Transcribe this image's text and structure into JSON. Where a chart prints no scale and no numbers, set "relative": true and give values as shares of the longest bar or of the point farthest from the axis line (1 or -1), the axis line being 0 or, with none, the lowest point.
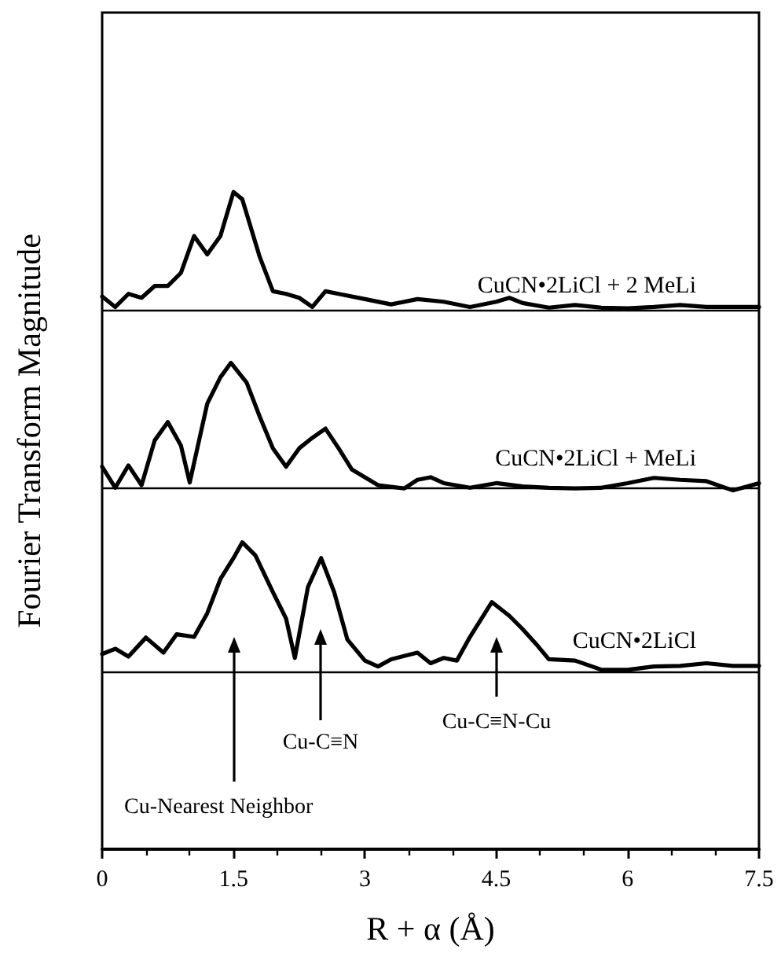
{
  "chart_data": {
    "type": "line",
    "relative": true,
    "xlabel": "R + α (Å)",
    "ylabel": "Fourier Transform Magnitude",
    "xlim": [
      0,
      7.5
    ],
    "xticks": [
      0,
      1.5,
      3,
      4.5,
      6,
      7.5
    ],
    "tick_labels": "x",
    "grid": false,
    "legend": false,
    "marker": "none",
    "line_style": "solid",
    "series": [
      {
        "name": "CuCN•2LiCl + 2 MeLi",
        "color": "#000000",
        "x": [
          0,
          0.15,
          0.3,
          0.45,
          0.6,
          0.75,
          0.9,
          1.05,
          1.2,
          1.35,
          1.5,
          1.6,
          1.8,
          1.95,
          2.1,
          2.25,
          2.4,
          2.55,
          2.7,
          3.0,
          3.3,
          3.6,
          3.9,
          4.2,
          4.5,
          4.65,
          4.8,
          5.1,
          5.4,
          5.7,
          6.0,
          6.3,
          6.6,
          6.9,
          7.2,
          7.5
        ],
        "values": [
          0.841,
          0.825,
          0.845,
          0.839,
          0.857,
          0.857,
          0.877,
          0.933,
          0.905,
          0.933,
          1.0,
          0.989,
          0.901,
          0.849,
          0.845,
          0.839,
          0.825,
          0.849,
          0.845,
          0.837,
          0.829,
          0.837,
          0.833,
          0.825,
          0.833,
          0.839,
          0.831,
          0.824,
          0.828,
          0.824,
          0.823,
          0.825,
          0.828,
          0.825,
          0.825,
          0.825
        ]
      },
      {
        "name": "CuCN•2LiCl + MeLi",
        "color": "#000000",
        "x": [
          0,
          0.15,
          0.3,
          0.45,
          0.6,
          0.75,
          0.9,
          1.0,
          1.2,
          1.35,
          1.47,
          1.65,
          1.8,
          1.95,
          2.1,
          2.25,
          2.4,
          2.55,
          2.7,
          2.85,
          3.0,
          3.15,
          3.45,
          3.6,
          3.75,
          3.9,
          4.2,
          4.5,
          4.8,
          5.1,
          5.4,
          5.7,
          6.0,
          6.3,
          6.6,
          6.9,
          7.2,
          7.5
        ],
        "values": [
          0.582,
          0.55,
          0.584,
          0.554,
          0.622,
          0.65,
          0.614,
          0.558,
          0.678,
          0.718,
          0.74,
          0.71,
          0.658,
          0.61,
          0.582,
          0.61,
          0.626,
          0.64,
          0.61,
          0.578,
          0.566,
          0.554,
          0.549,
          0.562,
          0.566,
          0.557,
          0.55,
          0.557,
          0.552,
          0.55,
          0.549,
          0.55,
          0.557,
          0.565,
          0.562,
          0.56,
          0.546,
          0.557
        ]
      },
      {
        "name": "CuCN•2LiCl",
        "color": "#000000",
        "x": [
          0,
          0.15,
          0.3,
          0.5,
          0.7,
          0.85,
          1.05,
          1.2,
          1.35,
          1.5,
          1.6,
          1.75,
          1.95,
          2.1,
          2.2,
          2.35,
          2.5,
          2.65,
          2.8,
          3.0,
          3.15,
          3.3,
          3.6,
          3.75,
          3.9,
          4.05,
          4.2,
          4.45,
          4.65,
          4.8,
          4.95,
          5.1,
          5.4,
          5.7,
          6.0,
          6.3,
          6.6,
          6.9,
          7.2,
          7.5
        ],
        "values": [
          0.297,
          0.305,
          0.293,
          0.322,
          0.299,
          0.327,
          0.323,
          0.359,
          0.411,
          0.443,
          0.467,
          0.447,
          0.391,
          0.351,
          0.291,
          0.399,
          0.443,
          0.391,
          0.319,
          0.287,
          0.278,
          0.289,
          0.299,
          0.283,
          0.291,
          0.287,
          0.323,
          0.376,
          0.355,
          0.335,
          0.313,
          0.289,
          0.287,
          0.273,
          0.273,
          0.278,
          0.279,
          0.283,
          0.279,
          0.279
        ]
      }
    ],
    "ref_lines": [
      {
        "axis": "y",
        "value": 0.82,
        "label": null,
        "color": "#000000"
      },
      {
        "axis": "y",
        "value": 0.546,
        "label": null,
        "color": "#000000"
      },
      {
        "axis": "y",
        "value": 0.273,
        "label": null,
        "color": "#000000"
      }
    ],
    "annotations": [
      "Cu-Nearest Neighbor",
      "Cu-C≡N",
      "Cu-C≡N-Cu"
    ]
  }
}
